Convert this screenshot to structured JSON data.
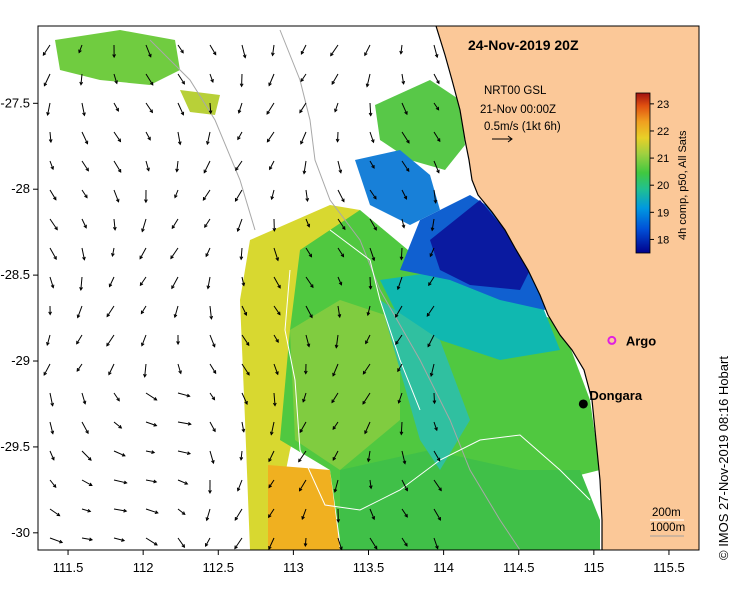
{
  "title": "24-Nov-2019 20Z",
  "credit": "© IMOS 27-Nov-2019 08:16 Hobart",
  "currents": {
    "source": "NRT00 GSL",
    "time": "21-Nov 00:00Z",
    "scale_label": "0.5m/s (1kt 6h)"
  },
  "colorbar": {
    "label": "4h comp, p50, All Sats",
    "ticks": [
      "18",
      "19",
      "20",
      "21",
      "22",
      "23"
    ],
    "min": 17.5,
    "max": 23.4,
    "colors": [
      "#00008b",
      "#0040d0",
      "#0090e0",
      "#00b8c8",
      "#10c080",
      "#40c840",
      "#90d040",
      "#d0d830",
      "#f0c020",
      "#f08020",
      "#d04010",
      "#a01010"
    ]
  },
  "places": [
    {
      "name": "Dongara",
      "lon": 114.93,
      "lat": -29.25,
      "marker": "dot"
    },
    {
      "name": "Argo",
      "lon": 115.12,
      "lat": -28.88,
      "marker": "star"
    }
  ],
  "bathymetry": {
    "labels": [
      "200m",
      "1000m"
    ]
  },
  "axes": {
    "x_ticks": [
      "111.5",
      "112",
      "112.5",
      "113",
      "113.5",
      "114",
      "114.5",
      "115",
      "115.5"
    ],
    "y_ticks": [
      "-27.5",
      "-28",
      "-28.5",
      "-29",
      "-29.5",
      "-30"
    ],
    "lon_range": [
      111.3,
      115.7
    ],
    "lat_range": [
      -30.1,
      -27.05
    ]
  },
  "colors": {
    "land": "#fbc898",
    "coast": "#000000",
    "contour_200": "#ffffff",
    "contour_1000": "#a0a0a0",
    "argo": "#e020e0"
  }
}
